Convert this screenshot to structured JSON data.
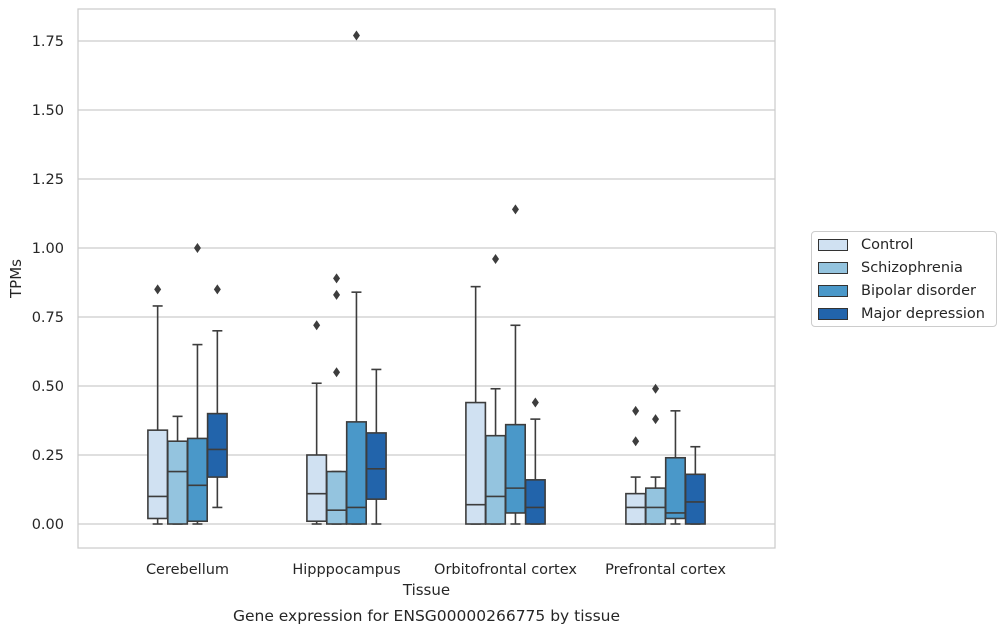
{
  "chart_data": {
    "type": "box",
    "title": "Gene expression for ENSG00000266775 by tissue",
    "xlabel": "Tissue",
    "ylabel": "TPMs",
    "ylim": [
      -0.09,
      1.87
    ],
    "yticks": [
      "0.00",
      "0.25",
      "0.50",
      "0.75",
      "1.00",
      "1.25",
      "1.50",
      "1.75"
    ],
    "ytick_values": [
      0,
      0.25,
      0.5,
      0.75,
      1.0,
      1.25,
      1.5,
      1.75
    ],
    "grid": true,
    "legend_placement": "outside-right",
    "categories": [
      "Cerebellum",
      "Hipppocampus",
      "Orbitofrontal cortex",
      "Prefrontal cortex"
    ],
    "series": [
      {
        "name": "Control",
        "color": "#d0e1f2",
        "boxes": [
          {
            "whislo": 0.0,
            "q1": 0.02,
            "med": 0.1,
            "q3": 0.34,
            "whishi": 0.79,
            "fliers": [
              0.85
            ]
          },
          {
            "whislo": 0.0,
            "q1": 0.01,
            "med": 0.11,
            "q3": 0.25,
            "whishi": 0.51,
            "fliers": [
              0.72
            ]
          },
          {
            "whislo": 0.0,
            "q1": 0.0,
            "med": 0.07,
            "q3": 0.44,
            "whishi": 0.86,
            "fliers": []
          },
          {
            "whislo": 0.0,
            "q1": 0.0,
            "med": 0.06,
            "q3": 0.11,
            "whishi": 0.17,
            "fliers": [
              0.3,
              0.41
            ]
          }
        ]
      },
      {
        "name": "Schizophrenia",
        "color": "#94c4df",
        "boxes": [
          {
            "whislo": 0.0,
            "q1": 0.0,
            "med": 0.19,
            "q3": 0.3,
            "whishi": 0.39,
            "fliers": []
          },
          {
            "whislo": 0.0,
            "q1": 0.0,
            "med": 0.05,
            "q3": 0.19,
            "whishi": 0.19,
            "fliers": [
              0.55,
              0.83,
              0.89
            ]
          },
          {
            "whislo": 0.0,
            "q1": 0.0,
            "med": 0.1,
            "q3": 0.32,
            "whishi": 0.49,
            "fliers": [
              0.96
            ]
          },
          {
            "whislo": 0.0,
            "q1": 0.0,
            "med": 0.06,
            "q3": 0.13,
            "whishi": 0.17,
            "fliers": [
              0.38,
              0.49
            ]
          }
        ]
      },
      {
        "name": "Bipolar disorder",
        "color": "#4a98c9",
        "boxes": [
          {
            "whislo": 0.0,
            "q1": 0.01,
            "med": 0.14,
            "q3": 0.31,
            "whishi": 0.65,
            "fliers": [
              1.0
            ]
          },
          {
            "whislo": 0.0,
            "q1": 0.0,
            "med": 0.06,
            "q3": 0.37,
            "whishi": 0.84,
            "fliers": [
              1.77
            ]
          },
          {
            "whislo": 0.0,
            "q1": 0.04,
            "med": 0.13,
            "q3": 0.36,
            "whishi": 0.72,
            "fliers": [
              1.14
            ]
          },
          {
            "whislo": 0.0,
            "q1": 0.02,
            "med": 0.04,
            "q3": 0.24,
            "whishi": 0.41,
            "fliers": []
          }
        ]
      },
      {
        "name": "Major depression",
        "color": "#2264ab",
        "boxes": [
          {
            "whislo": 0.06,
            "q1": 0.17,
            "med": 0.27,
            "q3": 0.4,
            "whishi": 0.7,
            "fliers": [
              0.85
            ]
          },
          {
            "whislo": 0.0,
            "q1": 0.09,
            "med": 0.2,
            "q3": 0.33,
            "whishi": 0.56,
            "fliers": []
          },
          {
            "whislo": 0.0,
            "q1": 0.0,
            "med": 0.06,
            "q3": 0.16,
            "whishi": 0.38,
            "fliers": [
              0.44
            ]
          },
          {
            "whislo": 0.0,
            "q1": 0.0,
            "med": 0.08,
            "q3": 0.18,
            "whishi": 0.28,
            "fliers": []
          }
        ]
      }
    ]
  }
}
